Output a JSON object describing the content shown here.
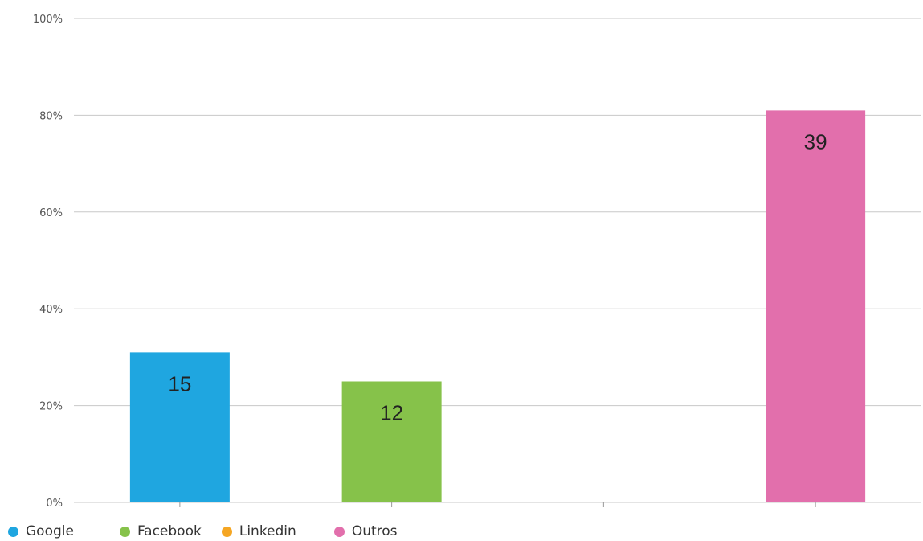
{
  "chart_data": {
    "type": "bar",
    "categories": [
      "Google",
      "Facebook",
      "Linkedin",
      "Outros"
    ],
    "series": [
      {
        "name": "Google",
        "value": 15,
        "percent": 31,
        "color": "#1fa6e0"
      },
      {
        "name": "Facebook",
        "value": 12,
        "percent": 25,
        "color": "#86c24a"
      },
      {
        "name": "Linkedin",
        "value": 0,
        "percent": 0,
        "color": "#f5a623"
      },
      {
        "name": "Outros",
        "value": 39,
        "percent": 81,
        "color": "#e26fac"
      }
    ],
    "y_ticks": [
      "0%",
      "20%",
      "40%",
      "60%",
      "80%",
      "100%"
    ],
    "ylim": [
      0,
      100
    ],
    "grid": true,
    "legend_position": "bottom-left"
  }
}
